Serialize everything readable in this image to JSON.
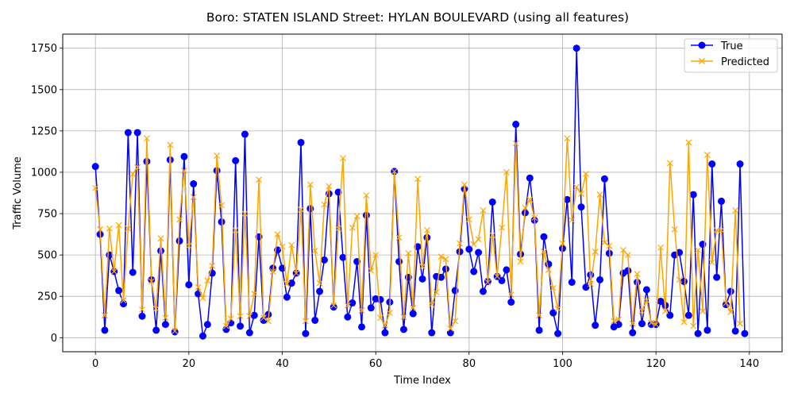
{
  "chart_data": {
    "type": "line",
    "title": "Boro: STATEN ISLAND Street: HYLAN BOULEVARD (using all features)",
    "xlabel": "Time Index",
    "ylabel": "Traffic Volume",
    "xlim": [
      -7,
      147
    ],
    "ylim": [
      -85,
      1835
    ],
    "xticks": [
      0,
      20,
      40,
      60,
      80,
      100,
      120,
      140
    ],
    "yticks": [
      0,
      250,
      500,
      750,
      1000,
      1250,
      1500,
      1750
    ],
    "grid": true,
    "legend_position": "top-right",
    "colors": {
      "true": "#0000ff",
      "predicted": "#ffa500"
    },
    "series": [
      {
        "name": "True",
        "marker": "circle",
        "values": [
          1035,
          625,
          45,
          500,
          400,
          285,
          205,
          1240,
          395,
          1240,
          130,
          1065,
          350,
          45,
          525,
          80,
          1075,
          35,
          585,
          1095,
          320,
          930,
          265,
          10,
          80,
          390,
          1010,
          700,
          50,
          90,
          1070,
          70,
          1230,
          30,
          135,
          610,
          105,
          140,
          420,
          530,
          420,
          245,
          330,
          390,
          1180,
          25,
          780,
          105,
          280,
          470,
          870,
          185,
          880,
          485,
          125,
          210,
          460,
          65,
          740,
          180,
          235,
          230,
          30,
          215,
          1005,
          460,
          50,
          365,
          145,
          550,
          355,
          605,
          30,
          370,
          365,
          415,
          30,
          285,
          520,
          900,
          535,
          400,
          515,
          280,
          340,
          820,
          370,
          345,
          410,
          215,
          1290,
          505,
          755,
          965,
          710,
          45,
          610,
          445,
          150,
          25,
          540,
          835,
          335,
          1750,
          790,
          305,
          380,
          75,
          350,
          960,
          510,
          65,
          80,
          390,
          405,
          30,
          335,
          85,
          290,
          80,
          80,
          220,
          195,
          135,
          500,
          515,
          340,
          135,
          865,
          25,
          565,
          45,
          1050,
          365,
          825,
          200,
          280,
          40,
          1050,
          25
        ]
      },
      {
        "name": "Predicted",
        "marker": "x",
        "values": [
          905,
          655,
          135,
          660,
          400,
          680,
          225,
          660,
          990,
          1030,
          170,
          1205,
          340,
          175,
          600,
          120,
          1165,
          40,
          715,
          1010,
          555,
          850,
          305,
          240,
          345,
          435,
          1100,
          800,
          70,
          115,
          650,
          130,
          750,
          130,
          265,
          955,
          120,
          100,
          400,
          625,
          550,
          325,
          560,
          390,
          775,
          100,
          925,
          525,
          330,
          805,
          915,
          195,
          660,
          1085,
          195,
          665,
          735,
          165,
          860,
          405,
          500,
          120,
          75,
          150,
          1005,
          605,
          125,
          510,
          180,
          960,
          430,
          650,
          200,
          275,
          490,
          475,
          55,
          100,
          570,
          925,
          715,
          565,
          595,
          770,
          335,
          620,
          370,
          665,
          1000,
          260,
          1175,
          460,
          785,
          835,
          725,
          135,
          520,
          410,
          300,
          175,
          570,
          1205,
          710,
          910,
          870,
          990,
          325,
          520,
          865,
          575,
          555,
          100,
          110,
          530,
          500,
          85,
          385,
          160,
          225,
          90,
          80,
          545,
          160,
          1055,
          655,
          350,
          95,
          1180,
          70,
          530,
          160,
          1105,
          455,
          650,
          650,
          210,
          155,
          770,
          85
        ]
      }
    ]
  }
}
